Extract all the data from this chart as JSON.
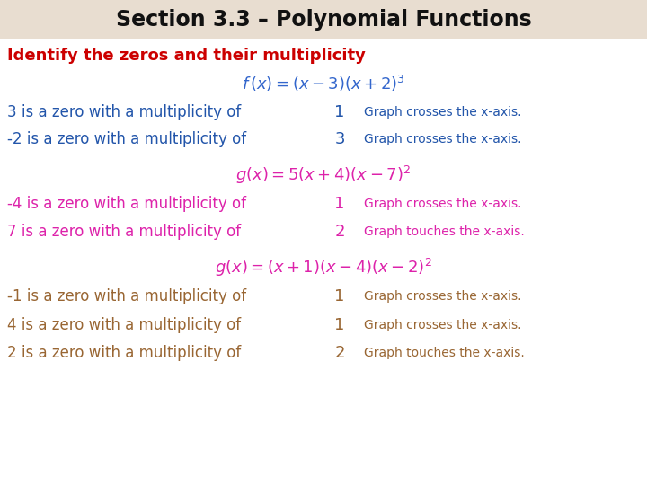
{
  "title": "Section 3.3 – Polynomial Functions",
  "title_color": "#111111",
  "title_bg": "#e8ddd0",
  "background_color": "#ffffff",
  "page_bg": "#f5ede0",
  "subtitle": "Identify the zeros and their multiplicity",
  "subtitle_color": "#cc0000",
  "formula1_color": "#3366cc",
  "formula2_color": "#dd22aa",
  "formula3_color": "#dd22aa",
  "s1_text_color": "#2255aa",
  "s1_num_color": "#2255aa",
  "s1_note_color": "#2255aa",
  "s2_text_color": "#dd22aa",
  "s2_num_color": "#dd22aa",
  "s2_note_color": "#dd22aa",
  "s3_text_color": "#996633",
  "s3_num_color": "#996633",
  "s3_note_color": "#996633",
  "section1_lines": [
    {
      "text": "3 is a zero with a multiplicity of",
      "number": "1",
      "note": "Graph crosses the x-axis."
    },
    {
      "text": "-2 is a zero with a multiplicity of",
      "number": "3",
      "note": "Graph crosses the x-axis."
    }
  ],
  "section2_lines": [
    {
      "text": "-4 is a zero with a multiplicity of",
      "number": "1",
      "note": "Graph crosses the x-axis."
    },
    {
      "text": "7 is a zero with a multiplicity of",
      "number": "2",
      "note": "Graph touches the x-axis."
    }
  ],
  "section3_lines": [
    {
      "text": "-1 is a zero with a multiplicity of",
      "number": "1",
      "note": "Graph crosses the x-axis."
    },
    {
      "text": "4 is a zero with a multiplicity of",
      "number": "1",
      "note": "Graph crosses the x-axis."
    },
    {
      "text": "2 is a zero with a multiplicity of",
      "number": "2",
      "note": "Graph touches the x-axis."
    }
  ]
}
